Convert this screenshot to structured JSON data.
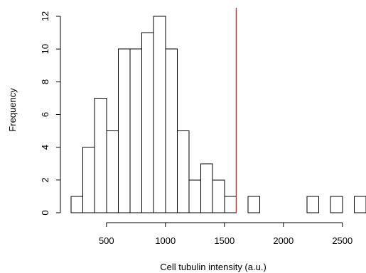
{
  "chart_data": {
    "type": "bar",
    "title": "",
    "xlabel": "Cell tubulin intensity (a.u.)",
    "ylabel": "Frequency",
    "xlim": [
      200,
      2700
    ],
    "ylim": [
      0,
      12
    ],
    "bin_width": 100,
    "bins": [
      {
        "start": 200,
        "end": 300,
        "count": 1
      },
      {
        "start": 300,
        "end": 400,
        "count": 4
      },
      {
        "start": 400,
        "end": 500,
        "count": 7
      },
      {
        "start": 500,
        "end": 600,
        "count": 5
      },
      {
        "start": 600,
        "end": 700,
        "count": 10
      },
      {
        "start": 700,
        "end": 800,
        "count": 10
      },
      {
        "start": 800,
        "end": 900,
        "count": 11
      },
      {
        "start": 900,
        "end": 1000,
        "count": 12
      },
      {
        "start": 1000,
        "end": 1100,
        "count": 10
      },
      {
        "start": 1100,
        "end": 1200,
        "count": 5
      },
      {
        "start": 1200,
        "end": 1300,
        "count": 2
      },
      {
        "start": 1300,
        "end": 1400,
        "count": 3
      },
      {
        "start": 1400,
        "end": 1500,
        "count": 2
      },
      {
        "start": 1500,
        "end": 1600,
        "count": 1
      },
      {
        "start": 1600,
        "end": 1700,
        "count": 0
      },
      {
        "start": 1700,
        "end": 1800,
        "count": 1
      },
      {
        "start": 1800,
        "end": 1900,
        "count": 0
      },
      {
        "start": 1900,
        "end": 2000,
        "count": 0
      },
      {
        "start": 2000,
        "end": 2100,
        "count": 0
      },
      {
        "start": 2100,
        "end": 2200,
        "count": 0
      },
      {
        "start": 2200,
        "end": 2300,
        "count": 1
      },
      {
        "start": 2300,
        "end": 2400,
        "count": 0
      },
      {
        "start": 2400,
        "end": 2500,
        "count": 1
      },
      {
        "start": 2500,
        "end": 2600,
        "count": 0
      },
      {
        "start": 2600,
        "end": 2700,
        "count": 1
      }
    ],
    "xticks": [
      500,
      1000,
      1500,
      2000,
      2500
    ],
    "yticks": [
      0,
      2,
      4,
      6,
      8,
      10,
      12
    ],
    "threshold_line": {
      "x": 1600,
      "color": "#d62728"
    },
    "bar_fill": "#ffffff",
    "bar_stroke": "#000000",
    "grid": false,
    "legend": "none"
  }
}
